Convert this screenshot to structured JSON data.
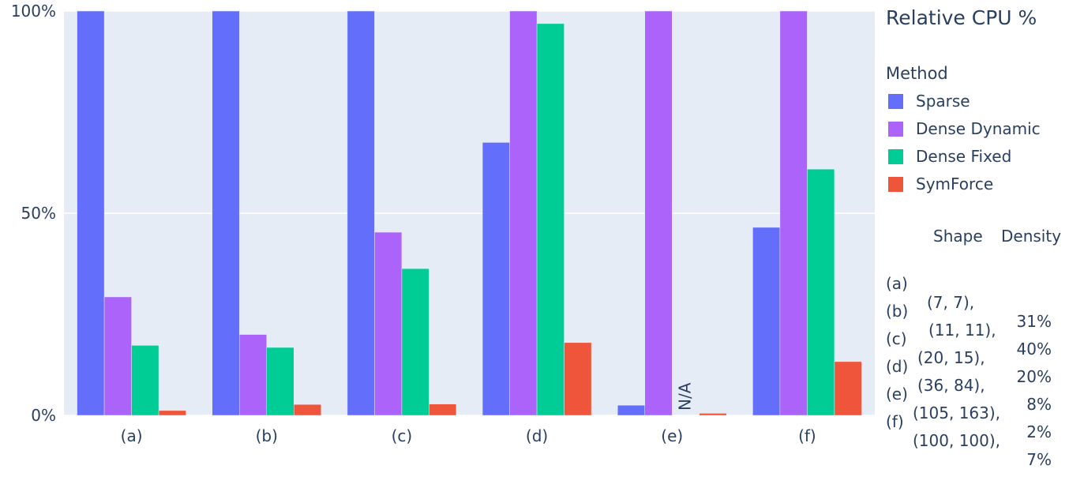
{
  "chart_data": {
    "type": "bar",
    "title": "Relative CPU %",
    "categories": [
      "(a)",
      "(b)",
      "(c)",
      "(d)",
      "(e)",
      "(f)"
    ],
    "legend_title": "Method",
    "legend_position": "right",
    "grid": true,
    "ylim": [
      0,
      100
    ],
    "yticks": [
      {
        "value": 0,
        "label": "0%"
      },
      {
        "value": 50,
        "label": "50%"
      },
      {
        "value": 100,
        "label": "100%"
      }
    ],
    "series": [
      {
        "name": "Sparse",
        "color": "#636efa",
        "values": [
          100,
          100,
          100,
          67.5,
          2.5,
          46.5
        ]
      },
      {
        "name": "Dense Dynamic",
        "color": "#ab63fa",
        "values": [
          29.3,
          20,
          45.3,
          100,
          100,
          100
        ]
      },
      {
        "name": "Dense Fixed",
        "color": "#00cc96",
        "values": [
          17.3,
          16.8,
          36.3,
          96.9,
          null,
          60.9
        ]
      },
      {
        "name": "SymForce",
        "color": "#ef553b",
        "values": [
          1.2,
          2.7,
          2.8,
          18,
          0.5,
          13.3
        ]
      }
    ],
    "annotations": [
      {
        "text": "N/A",
        "category": "(e)",
        "series": "Dense Fixed"
      }
    ]
  },
  "table": {
    "headers": [
      "Shape",
      "Density"
    ],
    "rows": [
      {
        "id": "(a)",
        "shape": "(7, 7),",
        "density": "31%"
      },
      {
        "id": "(b)",
        "shape": "(11, 11),",
        "density": "40%"
      },
      {
        "id": "(c)",
        "shape": "(20, 15),",
        "density": "20%"
      },
      {
        "id": "(d)",
        "shape": "(36, 84),",
        "density": "8%"
      },
      {
        "id": "(e)",
        "shape": "(105, 163),",
        "density": "2%"
      },
      {
        "id": "(f)",
        "shape": "(100, 100),",
        "density": "7%"
      }
    ]
  },
  "colors": {
    "plot_background": "#e5ecf6",
    "gridline": "#ffffff",
    "text": "#2a3f5f"
  }
}
